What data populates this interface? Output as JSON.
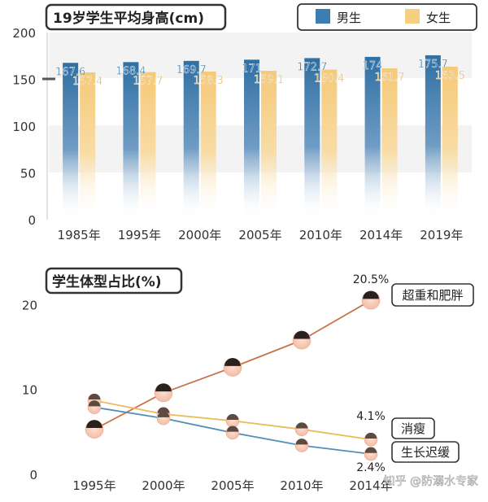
{
  "chart_data": [
    {
      "type": "bar",
      "title": "19岁学生平均身高(cm)",
      "categories": [
        "1985年",
        "1995年",
        "2000年",
        "2005年",
        "2010年",
        "2014年",
        "2019年"
      ],
      "series": [
        {
          "name": "男生",
          "values": [
            167.6,
            168.4,
            169.7,
            171,
            172.7,
            174,
            175.7
          ],
          "value_labels": [
            "167.6",
            "168.4",
            "169.7",
            "171",
            "172.7",
            "174",
            "175.7"
          ],
          "color": "#3a7fb0"
        },
        {
          "name": "女生",
          "values": [
            157.4,
            157.7,
            158.3,
            159.1,
            160.4,
            161.7,
            163.5
          ],
          "value_labels": [
            "157.4",
            "157.7",
            "158.3",
            "159.1",
            "160.4",
            "161.7",
            "163.5"
          ],
          "color": "#f6cf82"
        }
      ],
      "ylim": [
        0,
        200
      ],
      "yticks": [
        0,
        50,
        100,
        150,
        200
      ],
      "legend": "top-right",
      "grid": false
    },
    {
      "type": "line",
      "title": "学生体型占比(%)",
      "categories": [
        "1995年",
        "2000年",
        "2005年",
        "2010年",
        "2014年"
      ],
      "series": [
        {
          "name": "超重和肥胖",
          "values": [
            5.3,
            9.6,
            12.6,
            15.8,
            20.5
          ],
          "color": "#c8734a"
        },
        {
          "name": "消瘦",
          "values": [
            8.7,
            7.1,
            6.3,
            5.3,
            4.1
          ],
          "color": "#e7bd5c"
        },
        {
          "name": "生长迟缓",
          "values": [
            7.9,
            6.6,
            4.9,
            3.4,
            2.4
          ],
          "color": "#4f8fb6"
        }
      ],
      "annotations": [
        "20.5%",
        "4.1%",
        "2.4%"
      ],
      "ylim": [
        0,
        23
      ],
      "yticks": [
        0,
        10,
        20
      ],
      "grid": false
    }
  ],
  "watermark": "知乎 @防溺水专家"
}
